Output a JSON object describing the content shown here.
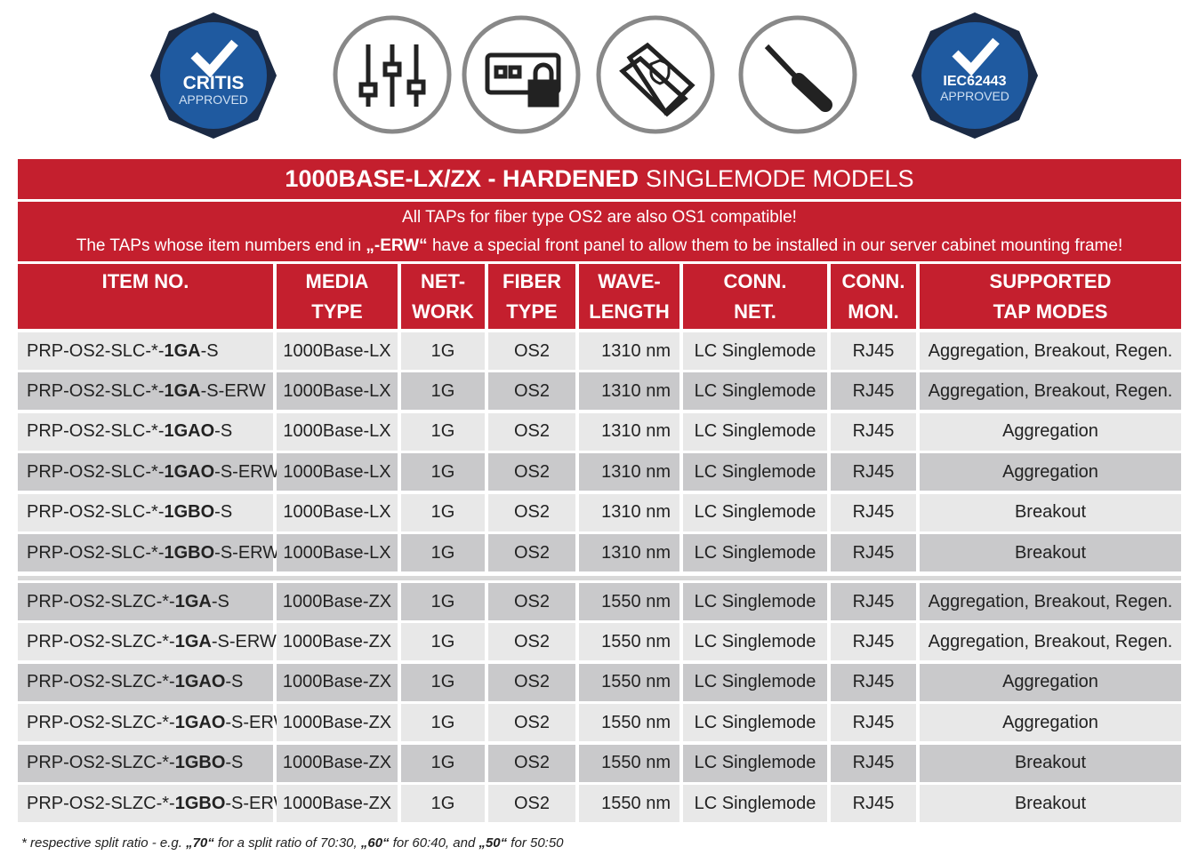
{
  "badges": [
    {
      "line1": "CRITIS",
      "line2": "APPROVED"
    },
    {
      "line1": "IEC62443",
      "line2": "APPROVED"
    }
  ],
  "table": {
    "title_bold": "1000BASE-LX/ZX - HARDENED",
    "title_rest": "SINGLEMODE MODELS",
    "note1": "All TAPs for fiber type OS2 are also OS1 compatible!",
    "note2": {
      "before": "The TAPs whose item numbers end in",
      "bold": "„-ERW“",
      "after": "have a special front panel to allow them to be installed in our server cabinet mounting frame!"
    },
    "headers": [
      [
        "ITEM NO."
      ],
      [
        "MEDIA",
        "TYPE"
      ],
      [
        "NET-",
        "WORK"
      ],
      [
        "FIBER",
        "TYPE"
      ],
      [
        "WAVE-",
        "LENGTH"
      ],
      [
        "CONN.",
        "NET."
      ],
      [
        "CONN.",
        "MON."
      ],
      [
        "SUPPORTED",
        "TAP MODES"
      ]
    ],
    "groups": [
      [
        {
          "item": {
            "prefix": "PRP-OS2-SLC-*-",
            "code": "1GA",
            "suffix": "-S"
          },
          "media": "1000Base-LX",
          "network": "1G",
          "fiber": "OS2",
          "wavelength": "1310 nm",
          "conn_net": "LC Singlemode",
          "conn_mon": "RJ45",
          "modes": "Aggregation, Breakout, Regen."
        },
        {
          "item": {
            "prefix": "PRP-OS2-SLC-*-",
            "code": "1GA",
            "suffix": "-S-ERW"
          },
          "media": "1000Base-LX",
          "network": "1G",
          "fiber": "OS2",
          "wavelength": "1310 nm",
          "conn_net": "LC Singlemode",
          "conn_mon": "RJ45",
          "modes": "Aggregation, Breakout, Regen."
        },
        {
          "item": {
            "prefix": "PRP-OS2-SLC-*-",
            "code": "1GAO",
            "suffix": "-S"
          },
          "media": "1000Base-LX",
          "network": "1G",
          "fiber": "OS2",
          "wavelength": "1310 nm",
          "conn_net": "LC Singlemode",
          "conn_mon": "RJ45",
          "modes": "Aggregation"
        },
        {
          "item": {
            "prefix": "PRP-OS2-SLC-*-",
            "code": "1GAO",
            "suffix": "-S-ERW"
          },
          "media": "1000Base-LX",
          "network": "1G",
          "fiber": "OS2",
          "wavelength": "1310 nm",
          "conn_net": "LC Singlemode",
          "conn_mon": "RJ45",
          "modes": "Aggregation"
        },
        {
          "item": {
            "prefix": "PRP-OS2-SLC-*-",
            "code": "1GBO",
            "suffix": "-S"
          },
          "media": "1000Base-LX",
          "network": "1G",
          "fiber": "OS2",
          "wavelength": "1310 nm",
          "conn_net": "LC Singlemode",
          "conn_mon": "RJ45",
          "modes": "Breakout"
        },
        {
          "item": {
            "prefix": "PRP-OS2-SLC-*-",
            "code": "1GBO",
            "suffix": "-S-ERW"
          },
          "media": "1000Base-LX",
          "network": "1G",
          "fiber": "OS2",
          "wavelength": "1310 nm",
          "conn_net": "LC Singlemode",
          "conn_mon": "RJ45",
          "modes": "Breakout"
        }
      ],
      [
        {
          "item": {
            "prefix": "PRP-OS2-SLZC-*-",
            "code": "1GA",
            "suffix": "-S"
          },
          "media": "1000Base-ZX",
          "network": "1G",
          "fiber": "OS2",
          "wavelength": "1550 nm",
          "conn_net": "LC Singlemode",
          "conn_mon": "RJ45",
          "modes": "Aggregation, Breakout, Regen."
        },
        {
          "item": {
            "prefix": "PRP-OS2-SLZC-*-",
            "code": "1GA",
            "suffix": "-S-ERW"
          },
          "media": "1000Base-ZX",
          "network": "1G",
          "fiber": "OS2",
          "wavelength": "1550 nm",
          "conn_net": "LC Singlemode",
          "conn_mon": "RJ45",
          "modes": "Aggregation, Breakout, Regen."
        },
        {
          "item": {
            "prefix": "PRP-OS2-SLZC-*-",
            "code": "1GAO",
            "suffix": "-S"
          },
          "media": "1000Base-ZX",
          "network": "1G",
          "fiber": "OS2",
          "wavelength": "1550 nm",
          "conn_net": "LC Singlemode",
          "conn_mon": "RJ45",
          "modes": "Aggregation"
        },
        {
          "item": {
            "prefix": "PRP-OS2-SLZC-*-",
            "code": "1GAO",
            "suffix": "-S-ERW"
          },
          "media": "1000Base-ZX",
          "network": "1G",
          "fiber": "OS2",
          "wavelength": "1550 nm",
          "conn_net": "LC Singlemode",
          "conn_mon": "RJ45",
          "modes": "Aggregation"
        },
        {
          "item": {
            "prefix": "PRP-OS2-SLZC-*-",
            "code": "1GBO",
            "suffix": "-S"
          },
          "media": "1000Base-ZX",
          "network": "1G",
          "fiber": "OS2",
          "wavelength": "1550 nm",
          "conn_net": "LC Singlemode",
          "conn_mon": "RJ45",
          "modes": "Breakout"
        },
        {
          "item": {
            "prefix": "PRP-OS2-SLZC-*-",
            "code": "1GBO",
            "suffix": "-S-ERW"
          },
          "media": "1000Base-ZX",
          "network": "1G",
          "fiber": "OS2",
          "wavelength": "1550 nm",
          "conn_net": "LC Singlemode",
          "conn_mon": "RJ45",
          "modes": "Breakout"
        }
      ]
    ]
  },
  "footnote": [
    "* respective split ratio - e.g. ",
    {
      "bold": "„70“"
    },
    " for a split ratio of 70:30, ",
    {
      "bold": "„60“"
    },
    " for 60:40, and ",
    {
      "bold": "„50“"
    },
    " for 50:50"
  ]
}
